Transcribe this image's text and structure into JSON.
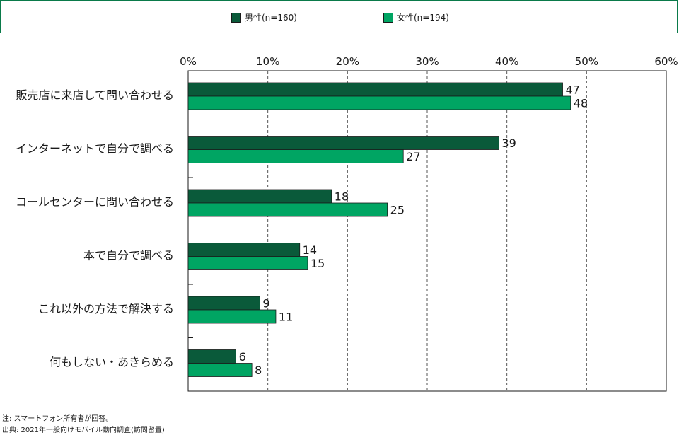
{
  "colors": {
    "male": "#0a5a3a",
    "female": "#00a563",
    "axis": "#1a1a1a",
    "frame": "#0a7a4a"
  },
  "chart_data": {
    "type": "bar",
    "orientation": "horizontal",
    "categories": [
      "販売店に来店して問い合わせる",
      "インターネットで自分で調べる",
      "コールセンターに問い合わせる",
      "本で自分で調べる",
      "これ以外の方法で解決する",
      "何もしない・あきらめる"
    ],
    "series": [
      {
        "name": "男性(n=160)",
        "values": [
          47,
          39,
          18,
          14,
          9,
          6
        ]
      },
      {
        "name": "女性(n=194)",
        "values": [
          48,
          27,
          25,
          15,
          11,
          8
        ]
      }
    ],
    "xlim": [
      0,
      60
    ],
    "ticks": [
      "0%",
      "10%",
      "20%",
      "30%",
      "40%",
      "50%",
      "60%"
    ],
    "tick_values": [
      0,
      10,
      20,
      30,
      40,
      50,
      60
    ],
    "grid": "dashed-vertical",
    "legend_position": "top"
  },
  "notes": [
    "注: スマートフォン所有者が回答。",
    "出典: 2021年一般向けモバイル動向調査(訪問留置)"
  ]
}
